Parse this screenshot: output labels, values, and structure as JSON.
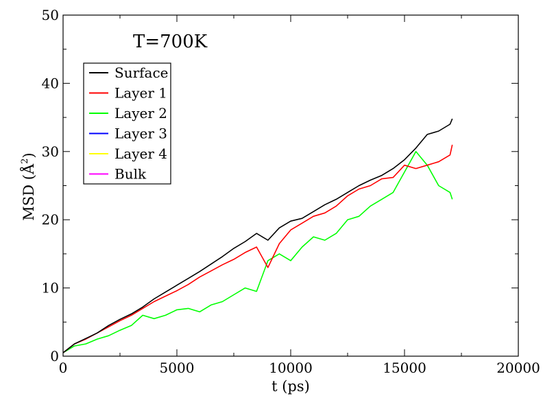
{
  "chart_data": {
    "type": "line",
    "title": "",
    "annotation": "T=700K",
    "xlabel": "t (ps)",
    "ylabel_main": "MSD (",
    "ylabel_unit": "Å",
    "ylabel_sup": "2",
    "ylabel_close": ")",
    "xlim": [
      0,
      20000
    ],
    "ylim": [
      0,
      50
    ],
    "x_ticks": [
      0,
      5000,
      10000,
      15000,
      20000
    ],
    "x_tick_labels": [
      "0",
      "5000",
      "10000",
      "15000",
      "20000"
    ],
    "y_ticks": [
      0,
      10,
      20,
      30,
      40,
      50
    ],
    "y_tick_labels": [
      "0",
      "10",
      "20",
      "30",
      "40",
      "50"
    ],
    "grid": false,
    "legend_position": "top-left",
    "series": [
      {
        "name": "Surface",
        "color": "#000000",
        "x": [
          0,
          500,
          1000,
          1500,
          2000,
          2500,
          3000,
          3500,
          4000,
          4500,
          5000,
          5500,
          6000,
          6500,
          7000,
          7500,
          8000,
          8500,
          9000,
          9500,
          10000,
          10500,
          11000,
          11500,
          12000,
          12500,
          13000,
          13500,
          14000,
          14500,
          15000,
          15500,
          16000,
          16500,
          17000,
          17100
        ],
        "y": [
          0.5,
          1.8,
          2.6,
          3.4,
          4.5,
          5.4,
          6.2,
          7.2,
          8.4,
          9.4,
          10.4,
          11.4,
          12.4,
          13.5,
          14.6,
          15.8,
          16.8,
          18.0,
          17.0,
          18.8,
          19.8,
          20.2,
          21.2,
          22.2,
          23.0,
          24.0,
          25.0,
          25.8,
          26.5,
          27.5,
          28.8,
          30.5,
          32.5,
          33.0,
          34.0,
          34.8
        ]
      },
      {
        "name": "Layer 1",
        "color": "#ff0000",
        "x": [
          0,
          500,
          1000,
          1500,
          2000,
          2500,
          3000,
          3500,
          4000,
          4500,
          5000,
          5500,
          6000,
          6500,
          7000,
          7500,
          8000,
          8500,
          9000,
          9500,
          10000,
          10500,
          11000,
          11500,
          12000,
          12500,
          13000,
          13500,
          14000,
          14500,
          15000,
          15500,
          16000,
          16500,
          17000,
          17100
        ],
        "y": [
          0.5,
          1.8,
          2.5,
          3.4,
          4.3,
          5.2,
          6.0,
          7.0,
          8.0,
          8.8,
          9.6,
          10.5,
          11.6,
          12.5,
          13.4,
          14.2,
          15.2,
          16.0,
          13.0,
          16.5,
          18.5,
          19.5,
          20.5,
          21.0,
          22.0,
          23.5,
          24.5,
          25.0,
          26.0,
          26.2,
          28.0,
          27.5,
          28.0,
          28.5,
          29.5,
          31.0
        ]
      },
      {
        "name": "Layer 2",
        "color": "#00ff00",
        "x": [
          0,
          500,
          1000,
          1500,
          2000,
          2500,
          3000,
          3500,
          4000,
          4500,
          5000,
          5500,
          6000,
          6500,
          7000,
          7500,
          8000,
          8500,
          9000,
          9500,
          10000,
          10500,
          11000,
          11500,
          12000,
          12500,
          13000,
          13500,
          14000,
          14500,
          15000,
          15500,
          16000,
          16500,
          17000,
          17100
        ],
        "y": [
          0.5,
          1.5,
          1.8,
          2.5,
          3.0,
          3.8,
          4.5,
          6.0,
          5.5,
          6.0,
          6.8,
          7.0,
          6.5,
          7.5,
          8.0,
          9.0,
          10.0,
          9.5,
          14.0,
          15.0,
          14.0,
          16.0,
          17.5,
          17.0,
          18.0,
          20.0,
          20.5,
          22.0,
          23.0,
          24.0,
          27.0,
          30.0,
          28.0,
          25.0,
          24.0,
          23.0
        ]
      },
      {
        "name": "Layer 3",
        "color": "#0000ff",
        "x": [],
        "y": []
      },
      {
        "name": "Layer 4",
        "color": "#ffff00",
        "x": [],
        "y": []
      },
      {
        "name": "Bulk",
        "color": "#ff00ff",
        "x": [],
        "y": []
      }
    ]
  }
}
